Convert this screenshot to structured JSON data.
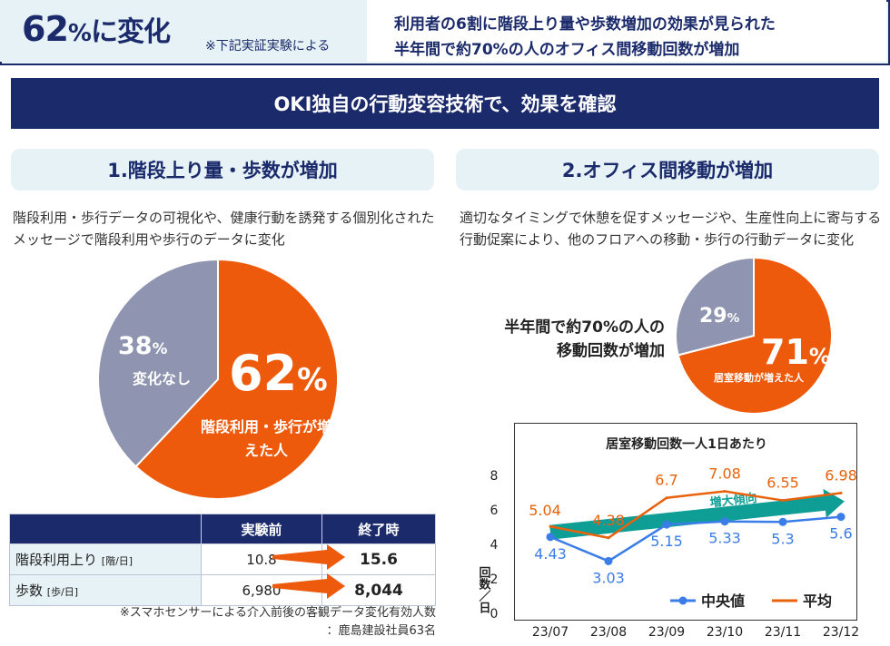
{
  "header": {
    "big_value": "62",
    "big_pct": "%",
    "big_suffix": "に変化",
    "note": "※下記実証実験による",
    "line1": "利用者の6割に階段上り量や歩数増加の効果が見られた",
    "line2": "半年間で約70%の人のオフィス間移動回数が増加"
  },
  "banner": "OKI独自の行動変容技術で、効果を確認",
  "section1": {
    "title": "1.階段上り量・歩数が増加",
    "desc": "階段利用・歩行データの可視化や、健康行動を誘発する個別化されたメッセージで階段利用や歩行のデータに変化",
    "pie": {
      "slices": [
        {
          "value": 62,
          "pct_text": "62",
          "label": "階段利用・歩行が増えた人",
          "color": "#ee5a0c"
        },
        {
          "value": 38,
          "pct_text": "38",
          "label": "変化なし",
          "color": "#8f95b0"
        }
      ]
    },
    "table": {
      "headers": [
        "",
        "実験前",
        "終了時"
      ],
      "rows": [
        {
          "label": "階段利用上り",
          "unit": "[階/日]",
          "before": "10.8",
          "after": "15.6"
        },
        {
          "label": "歩数",
          "unit": "[歩/日]",
          "before": "6,980",
          "after": "8,044"
        }
      ]
    },
    "note1": "※スマホセンサーによる介入前後の客観データ変化有効人数",
    "note2": "：鹿島建設社員63名"
  },
  "section2": {
    "title": "2.オフィス間移動が増加",
    "desc": "適切なタイミングで休憩を促すメッセージや、生産性向上に寄与する行動促案により、他のフロアへの移動・歩行の行動データに変化",
    "side1": "半年間で約70%の人の",
    "side2": "移動回数が増加",
    "pie": {
      "slices": [
        {
          "value": 71,
          "pct_text": "71",
          "label": "居室移動が増えた人",
          "color": "#ee5a0c"
        },
        {
          "value": 29,
          "pct_text": "29",
          "label": "",
          "color": "#8f95b0"
        }
      ]
    }
  },
  "chart_data": {
    "type": "line",
    "title": "居室移動回数一人1日あたり",
    "ylabel": "回数／日",
    "categories": [
      "23/07",
      "23/08",
      "23/09",
      "23/10",
      "23/11",
      "23/12"
    ],
    "ylim": [
      0,
      8
    ],
    "yticks": [
      0,
      2,
      4,
      6,
      8
    ],
    "series": [
      {
        "name": "中央値",
        "values": [
          4.43,
          3.03,
          5.15,
          5.33,
          5.3,
          5.6
        ],
        "labels": [
          "4.43",
          "3.03",
          "5.15",
          "5.33",
          "5.3",
          "5.6"
        ],
        "color": "#3b7de8"
      },
      {
        "name": "平均",
        "values": [
          5.04,
          4.38,
          6.7,
          7.08,
          6.55,
          6.98
        ],
        "labels": [
          "5.04",
          "4.38",
          "6.7",
          "7.08",
          "6.55",
          "6.98"
        ],
        "color": "#e8620c"
      }
    ],
    "annotation": "増大傾向",
    "annotation_color": "#0f9e96",
    "legend": "bottom-right",
    "grid": false
  }
}
